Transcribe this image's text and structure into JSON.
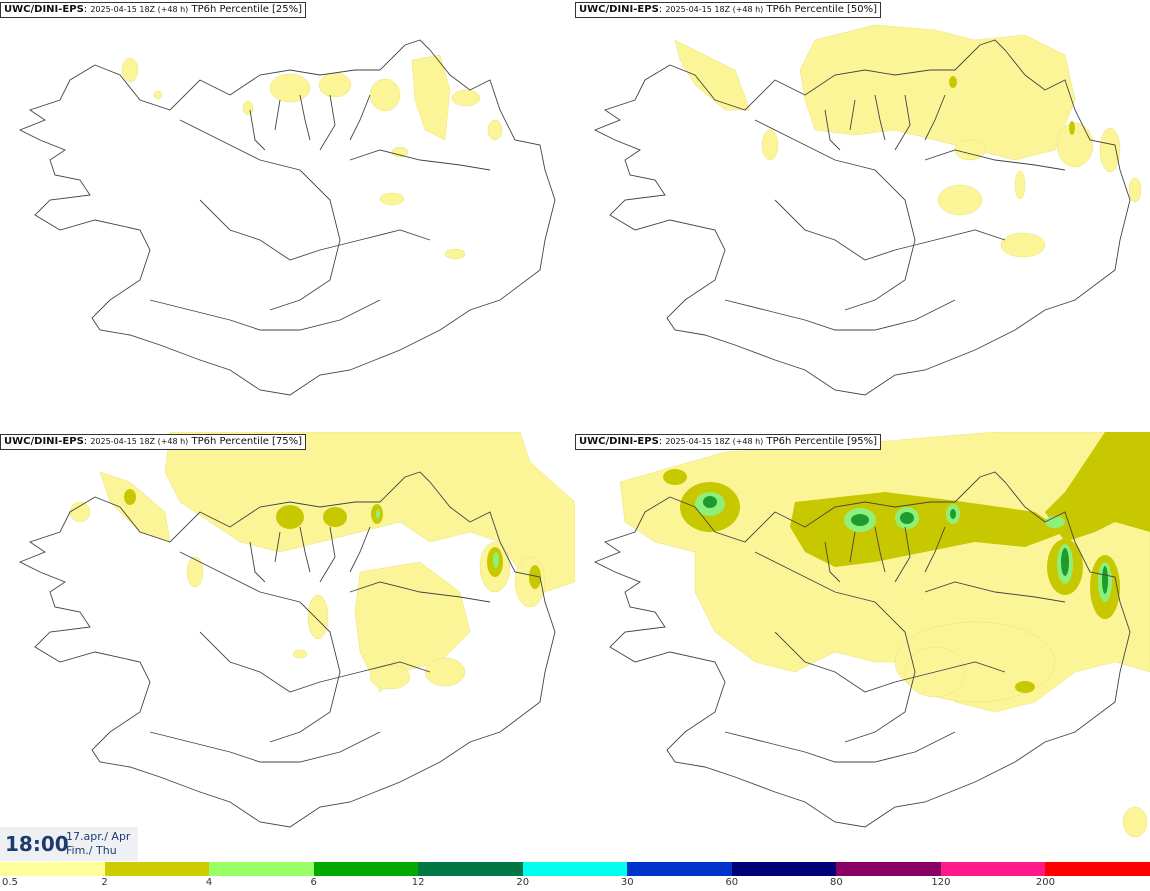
{
  "panels": [
    {
      "model": "UWC/DINI-EPS",
      "run": "2025-04-15 18Z (+48 h)",
      "label": "TP6h Percentile [25%]"
    },
    {
      "model": "UWC/DINI-EPS",
      "run": "2025-04-15 18Z (+48 h)",
      "label": "TP6h Percentile [50%]"
    },
    {
      "model": "UWC/DINI-EPS",
      "run": "2025-04-15 18Z (+48 h)",
      "label": "TP6h Percentile [75%]"
    },
    {
      "model": "UWC/DINI-EPS",
      "run": "2025-04-15 18Z (+48 h)",
      "label": "TP6h Percentile [95%]"
    }
  ],
  "valid_time": {
    "time": "18:00",
    "date_line1": "17.apr./ Apr",
    "date_line2": "Fim./ Thu"
  },
  "legend": {
    "colors": [
      "#ffff99",
      "#cccc00",
      "#99ff66",
      "#00aa00",
      "#007744",
      "#00ffee",
      "#0033cc",
      "#000077",
      "#880066",
      "#ff1a8c",
      "#ff0000"
    ],
    "labels": [
      "0.5",
      "2",
      "4",
      "6",
      "12",
      "20",
      "30",
      "60",
      "80",
      "120",
      "200"
    ]
  },
  "map_colors": {
    "land_outline": "#444444",
    "light_precip": "#fbf598",
    "mid_precip": "#c8c800",
    "high_precip": "#8ef07a",
    "heavy_precip": "#1f9a2e"
  }
}
